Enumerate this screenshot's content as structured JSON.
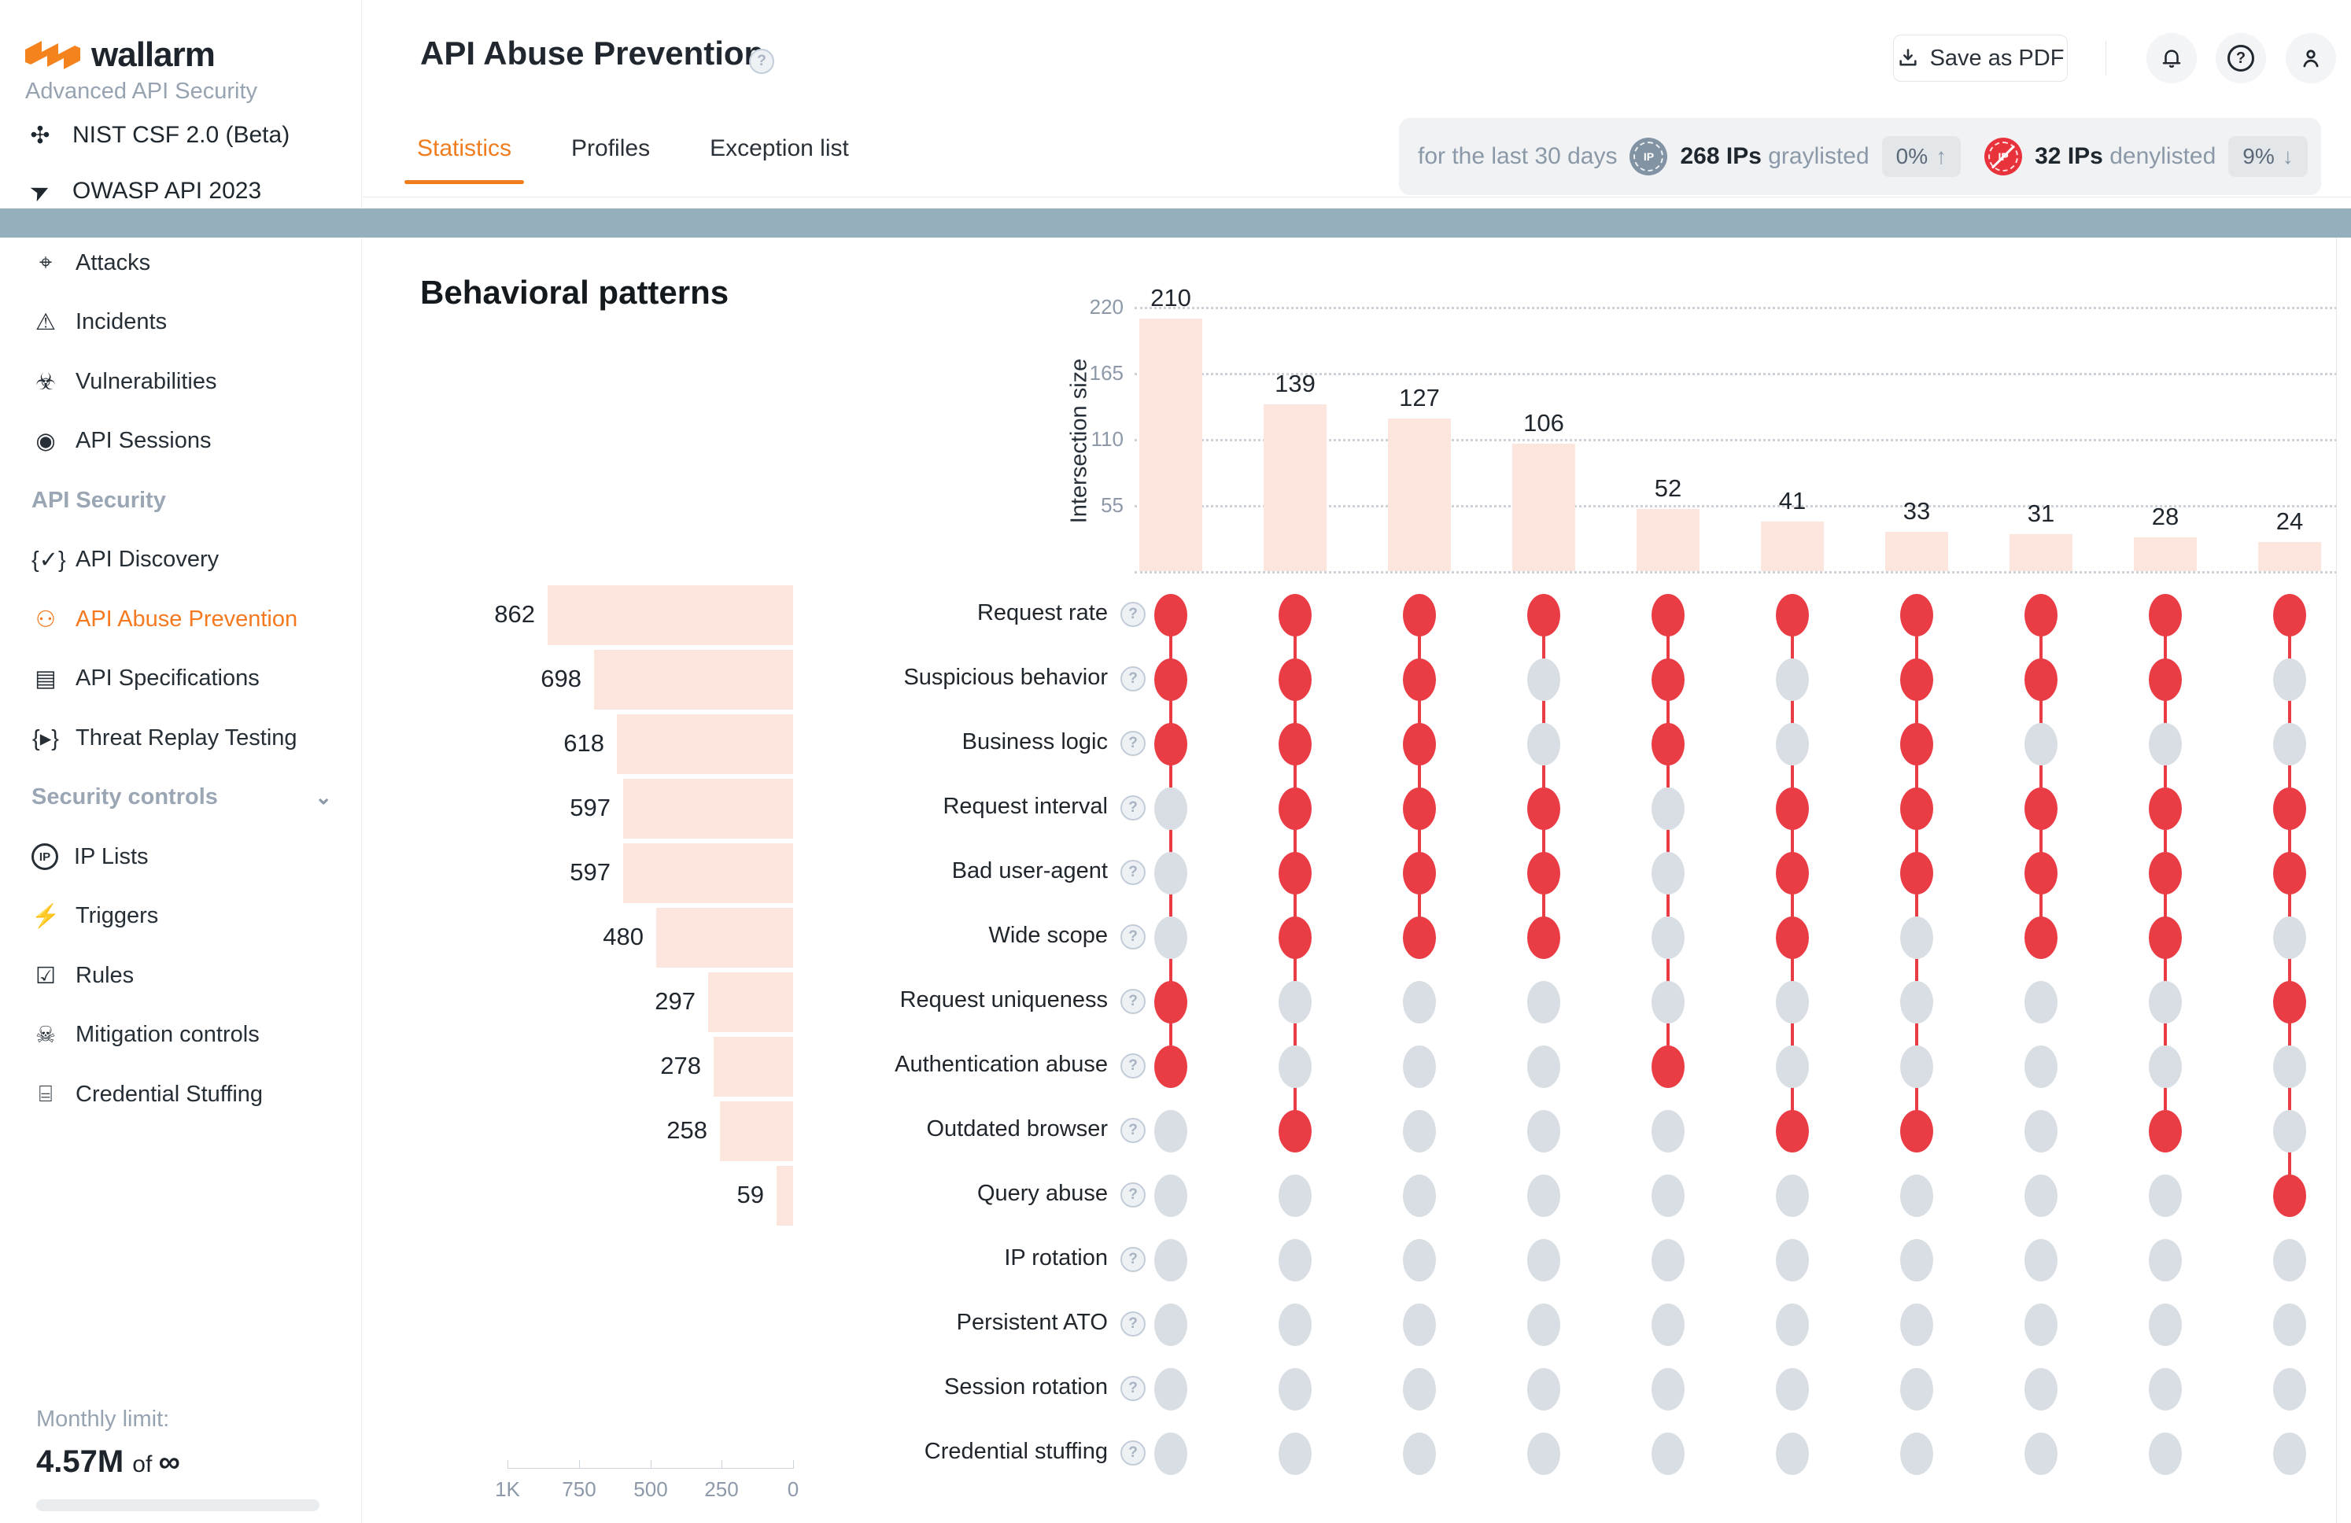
{
  "sidebar": {
    "brand": "wallarm",
    "subtitle": "Advanced API Security",
    "top_links": [
      {
        "icon": "nist-icon",
        "glyph": "✣",
        "label": "NIST CSF 2.0 (Beta)"
      },
      {
        "icon": "owasp-icon",
        "glyph": "➤",
        "label": "OWASP API 2023"
      }
    ],
    "nav": [
      {
        "type": "item",
        "icon": "attacks-icon",
        "glyph": "⌖",
        "label": "Attacks"
      },
      {
        "type": "item",
        "icon": "incidents-icon",
        "glyph": "⚠",
        "label": "Incidents"
      },
      {
        "type": "item",
        "icon": "vulnerabilities-icon",
        "glyph": "☣",
        "label": "Vulnerabilities"
      },
      {
        "type": "item",
        "icon": "api-sessions-icon",
        "glyph": "◉",
        "label": "API Sessions"
      },
      {
        "type": "header",
        "label": "API Security"
      },
      {
        "type": "item",
        "icon": "api-discovery-icon",
        "glyph": "{✓}",
        "label": "API Discovery"
      },
      {
        "type": "item",
        "icon": "api-abuse-prevention-icon",
        "glyph": "⚇",
        "label": "API Abuse Prevention",
        "active": true
      },
      {
        "type": "item",
        "icon": "api-specifications-icon",
        "glyph": "▤",
        "label": "API Specifications"
      },
      {
        "type": "item",
        "icon": "threat-replay-icon",
        "glyph": "{▸}",
        "label": "Threat Replay Testing"
      },
      {
        "type": "header",
        "label": "Security controls",
        "chevron": "⌄"
      },
      {
        "type": "item",
        "icon": "ip-lists-icon",
        "glyph": "IP",
        "label": "IP Lists",
        "iconstyle": "circle"
      },
      {
        "type": "item",
        "icon": "triggers-icon",
        "glyph": "⚡",
        "label": "Triggers"
      },
      {
        "type": "item",
        "icon": "rules-icon",
        "glyph": "☑",
        "label": "Rules"
      },
      {
        "type": "item",
        "icon": "mitigation-controls-icon",
        "glyph": "☠",
        "label": "Mitigation controls"
      },
      {
        "type": "item",
        "icon": "credential-stuffing-icon",
        "glyph": "⌸",
        "label": "Credential Stuffing"
      }
    ],
    "monthly_limit": {
      "label": "Monthly limit:",
      "value": "4.57M",
      "of": "of",
      "infinity": "∞"
    }
  },
  "header": {
    "title": "API Abuse Prevention",
    "help_icon": "?",
    "tabs": [
      {
        "label": "Statistics",
        "active": true
      },
      {
        "label": "Profiles",
        "active": false
      },
      {
        "label": "Exception list",
        "active": false
      }
    ],
    "save_button": "Save as PDF"
  },
  "stats_bar": {
    "period": "for the last 30 days",
    "graylisted": {
      "count": "268 IPs",
      "label": "graylisted",
      "badge": "0%",
      "arrow": "↑",
      "icon_text": "IP"
    },
    "denylisted": {
      "count": "32 IPs",
      "label": "denylisted",
      "badge": "9%",
      "arrow": "↓",
      "icon_text": "IP"
    }
  },
  "section_title": "Behavioral patterns",
  "colors": {
    "accent_orange": "#f4791f",
    "red": "#ea3c44",
    "dot_gray": "#d9dee5",
    "bar_pink": "#fbe5dd",
    "band_blue": "#96afbc"
  },
  "chart_data": {
    "type": "upset",
    "title": "Behavioral patterns",
    "intersection_axis": {
      "label": "Intersection size",
      "ticks": [
        220,
        165,
        110,
        55
      ],
      "ylim": [
        0,
        235
      ]
    },
    "set_axis": {
      "tick_labels": [
        "1K",
        "750",
        "500",
        "250",
        "0"
      ],
      "tick_values": [
        1000,
        750,
        500,
        250,
        0
      ]
    },
    "sets": [
      {
        "name": "Request rate",
        "size": 862
      },
      {
        "name": "Suspicious behavior",
        "size": 698
      },
      {
        "name": "Business logic",
        "size": 618
      },
      {
        "name": "Request interval",
        "size": 597
      },
      {
        "name": "Bad user-agent",
        "size": 597
      },
      {
        "name": "Wide scope",
        "size": 480
      },
      {
        "name": "Request uniqueness",
        "size": 297
      },
      {
        "name": "Authentication abuse",
        "size": 278
      },
      {
        "name": "Outdated browser",
        "size": 258
      },
      {
        "name": "Query abuse",
        "size": 59
      },
      {
        "name": "IP rotation",
        "size": 0
      },
      {
        "name": "Persistent ATO",
        "size": 0
      },
      {
        "name": "Session rotation",
        "size": 0
      },
      {
        "name": "Credential stuffing",
        "size": 0
      }
    ],
    "intersections": [
      {
        "size": 210,
        "members": [
          0,
          1,
          2,
          6,
          7
        ]
      },
      {
        "size": 139,
        "members": [
          0,
          1,
          2,
          3,
          4,
          5,
          8
        ]
      },
      {
        "size": 127,
        "members": [
          0,
          1,
          2,
          3,
          4,
          5
        ]
      },
      {
        "size": 106,
        "members": [
          0,
          3,
          4,
          5
        ]
      },
      {
        "size": 52,
        "members": [
          0,
          1,
          2,
          7
        ]
      },
      {
        "size": 41,
        "members": [
          0,
          3,
          4,
          5,
          8
        ]
      },
      {
        "size": 33,
        "members": [
          0,
          1,
          2,
          3,
          4,
          8
        ]
      },
      {
        "size": 31,
        "members": [
          0,
          1,
          3,
          4,
          5
        ]
      },
      {
        "size": 28,
        "members": [
          0,
          1,
          3,
          4,
          5,
          8
        ]
      },
      {
        "size": 24,
        "members": [
          0,
          3,
          4,
          6,
          9
        ]
      }
    ],
    "grid": "dotted-horizontal",
    "legend": "none"
  }
}
